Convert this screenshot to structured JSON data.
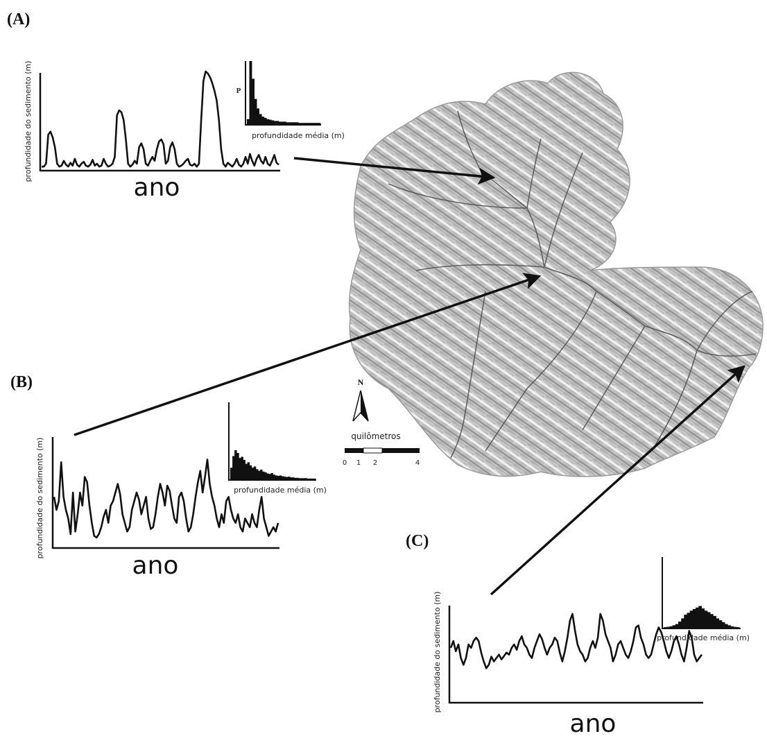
{
  "panels": [
    {
      "id": "A",
      "letter": "(A)",
      "ylabel": "profundidade do sedimento (m)",
      "xlabel": "ano",
      "hist_xlabel": "profundidade média (m)",
      "hist_ylabel": "P",
      "series": [
        0.02,
        0.02,
        0.05,
        0.35,
        0.38,
        0.32,
        0.22,
        0.05,
        0.02,
        0.03,
        0.08,
        0.04,
        0.02,
        0.06,
        0.03,
        0.1,
        0.04,
        0.02,
        0.05,
        0.07,
        0.03,
        0.02,
        0.04,
        0.09,
        0.03,
        0.05,
        0.02,
        0.03,
        0.1,
        0.05,
        0.02,
        0.03,
        0.05,
        0.12,
        0.55,
        0.6,
        0.58,
        0.5,
        0.3,
        0.05,
        0.02,
        0.04,
        0.08,
        0.05,
        0.22,
        0.26,
        0.2,
        0.05,
        0.03,
        0.08,
        0.12,
        0.08,
        0.2,
        0.28,
        0.3,
        0.25,
        0.05,
        0.08,
        0.22,
        0.27,
        0.2,
        0.05,
        0.02,
        0.03,
        0.05,
        0.08,
        0.1,
        0.04,
        0.03,
        0.05,
        0.02,
        0.05,
        0.5,
        0.9,
        1.0,
        0.98,
        0.94,
        0.88,
        0.8,
        0.7,
        0.5,
        0.2,
        0.05,
        0.02,
        0.06,
        0.04,
        0.02,
        0.05,
        0.1,
        0.04,
        0.02,
        0.05,
        0.12,
        0.05,
        0.15,
        0.08,
        0.03,
        0.1,
        0.14,
        0.08,
        0.05,
        0.12,
        0.05,
        0.03,
        0.08,
        0.14,
        0.06,
        0.04
      ],
      "hist": [
        0.08,
        1.0,
        0.72,
        0.4,
        0.25,
        0.16,
        0.12,
        0.1,
        0.08,
        0.07,
        0.06,
        0.05,
        0.05,
        0.04,
        0.04,
        0.04,
        0.03,
        0.03,
        0.03,
        0.03,
        0.03,
        0.02,
        0.02,
        0.02,
        0.02,
        0.02,
        0.02,
        0.02,
        0.02,
        0.02
      ]
    },
    {
      "id": "B",
      "letter": "(B)",
      "ylabel": "profundidade do sedimento (m)",
      "xlabel": "ano",
      "hist_xlabel": "profundidade média (m)",
      "hist_ylabel": "",
      "series": [
        0.55,
        0.4,
        0.5,
        0.95,
        0.55,
        0.4,
        0.3,
        0.12,
        0.6,
        0.15,
        0.35,
        0.6,
        0.45,
        0.78,
        0.72,
        0.45,
        0.25,
        0.1,
        0.08,
        0.12,
        0.2,
        0.32,
        0.4,
        0.25,
        0.45,
        0.5,
        0.6,
        0.7,
        0.58,
        0.35,
        0.25,
        0.15,
        0.2,
        0.4,
        0.5,
        0.6,
        0.52,
        0.35,
        0.45,
        0.55,
        0.3,
        0.18,
        0.2,
        0.35,
        0.55,
        0.7,
        0.6,
        0.45,
        0.68,
        0.62,
        0.45,
        0.3,
        0.25,
        0.55,
        0.6,
        0.5,
        0.3,
        0.15,
        0.2,
        0.35,
        0.55,
        0.72,
        0.85,
        0.6,
        0.78,
        0.98,
        0.7,
        0.55,
        0.45,
        0.3,
        0.2,
        0.35,
        0.25,
        0.5,
        0.55,
        0.4,
        0.3,
        0.25,
        0.35,
        0.2,
        0.15,
        0.3,
        0.25,
        0.2,
        0.35,
        0.25,
        0.2,
        0.4,
        0.55,
        0.3,
        0.2,
        0.1,
        0.15,
        0.2,
        0.15,
        0.25
      ],
      "hist": [
        0.3,
        0.6,
        0.75,
        0.68,
        0.55,
        0.58,
        0.5,
        0.4,
        0.44,
        0.36,
        0.3,
        0.33,
        0.26,
        0.22,
        0.25,
        0.2,
        0.18,
        0.15,
        0.14,
        0.16,
        0.12,
        0.1,
        0.09,
        0.1,
        0.08,
        0.07,
        0.06,
        0.07,
        0.05,
        0.05,
        0.04,
        0.04,
        0.03,
        0.03,
        0.03,
        0.03,
        0.02,
        0.02,
        0.02,
        0.02
      ]
    },
    {
      "id": "C",
      "letter": "(C)",
      "ylabel": "profundidade do sedimento (m)",
      "xlabel": "ano",
      "hist_xlabel": "profundidade média (m)",
      "hist_ylabel": "",
      "series": [
        0.45,
        0.55,
        0.4,
        0.5,
        0.3,
        0.2,
        0.3,
        0.5,
        0.45,
        0.55,
        0.6,
        0.55,
        0.38,
        0.25,
        0.15,
        0.2,
        0.32,
        0.25,
        0.3,
        0.35,
        0.28,
        0.33,
        0.38,
        0.35,
        0.45,
        0.5,
        0.42,
        0.55,
        0.62,
        0.5,
        0.45,
        0.35,
        0.3,
        0.45,
        0.55,
        0.65,
        0.58,
        0.45,
        0.35,
        0.45,
        0.5,
        0.6,
        0.55,
        0.38,
        0.25,
        0.4,
        0.6,
        0.85,
        0.95,
        0.7,
        0.5,
        0.4,
        0.35,
        0.25,
        0.3,
        0.45,
        0.55,
        0.45,
        0.6,
        0.95,
        0.85,
        0.65,
        0.55,
        0.45,
        0.25,
        0.35,
        0.5,
        0.55,
        0.45,
        0.35,
        0.3,
        0.4,
        0.55,
        0.75,
        0.78,
        0.6,
        0.5,
        0.35,
        0.3,
        0.35,
        0.5,
        0.65,
        0.75,
        0.68,
        0.55,
        0.4,
        0.3,
        0.4,
        0.55,
        0.62,
        0.5,
        0.35,
        0.25,
        0.45,
        0.7,
        0.6,
        0.35,
        0.25,
        0.3,
        0.35
      ],
      "hist": [
        0.02,
        0.03,
        0.05,
        0.08,
        0.12,
        0.2,
        0.3,
        0.42,
        0.48,
        0.55,
        0.6,
        0.65,
        0.7,
        0.62,
        0.55,
        0.5,
        0.44,
        0.38,
        0.3,
        0.24,
        0.18,
        0.12,
        0.08,
        0.05,
        0.03,
        0.02
      ]
    }
  ],
  "map": {
    "scale_title": "quilômetros",
    "scale_ticks": [
      "0",
      "1",
      "2",
      "4"
    ],
    "north_label": "N"
  },
  "colors": {
    "ink": "#111111",
    "map_light": "#e8e8e8",
    "map_dark": "#8a8a8a",
    "river": "#555555"
  }
}
